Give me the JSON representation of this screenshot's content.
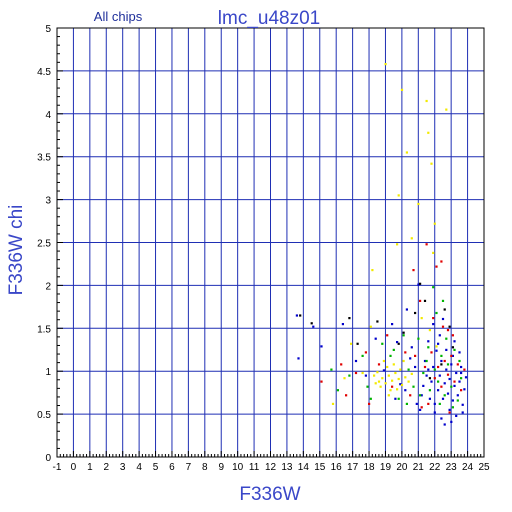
{
  "chart_data": {
    "type": "scatter",
    "subtitle": "All chips",
    "title": "lmc_u48z01",
    "xlabel": "F336W",
    "ylabel": "F336W chi",
    "xlim": [
      -1,
      25
    ],
    "ylim": [
      0,
      5
    ],
    "x_ticks": [
      "-1",
      "0",
      "1",
      "2",
      "3",
      "4",
      "5",
      "6",
      "7",
      "8",
      "9",
      "10",
      "11",
      "12",
      "13",
      "14",
      "15",
      "16",
      "17",
      "18",
      "19",
      "20",
      "21",
      "22",
      "23",
      "24",
      "25"
    ],
    "y_ticks": [
      "0",
      "0.5",
      "1",
      "1.5",
      "2",
      "2.5",
      "3",
      "3.5",
      "4",
      "4.5",
      "5"
    ],
    "grid": true,
    "colors": {
      "axes": "#000000",
      "grid": "#1f2fb4",
      "label": "#3a47c8",
      "title_small": "#1f2f9a"
    },
    "series": [
      {
        "color": "#0000cc",
        "points": [
          [
            13.6,
            1.65
          ],
          [
            13.7,
            1.15
          ],
          [
            14.6,
            1.52
          ],
          [
            15.1,
            1.29
          ],
          [
            16.4,
            1.55
          ],
          [
            17.2,
            1.12
          ],
          [
            17.8,
            0.95
          ],
          [
            18.4,
            1.38
          ],
          [
            18.9,
            1.01
          ],
          [
            19.4,
            1.55
          ],
          [
            19.7,
            1.34
          ],
          [
            19.9,
            0.85
          ],
          [
            20.3,
            1.72
          ],
          [
            20.6,
            1.28
          ],
          [
            20.8,
            1.05
          ],
          [
            21.0,
            2.01
          ],
          [
            21.2,
            0.72
          ],
          [
            21.4,
            1.12
          ],
          [
            21.5,
            0.95
          ],
          [
            21.6,
            1.35
          ],
          [
            21.8,
            0.88
          ],
          [
            21.9,
            1.05
          ],
          [
            22.0,
            0.62
          ],
          [
            22.1,
            1.24
          ],
          [
            22.2,
            0.78
          ],
          [
            22.3,
            0.95
          ],
          [
            22.4,
            1.12
          ],
          [
            22.5,
            0.68
          ],
          [
            22.6,
            0.86
          ],
          [
            22.7,
            1.02
          ],
          [
            22.8,
            0.74
          ],
          [
            22.9,
            0.91
          ],
          [
            23.0,
            1.08
          ],
          [
            23.1,
            0.66
          ],
          [
            23.2,
            0.83
          ],
          [
            23.3,
            0.98
          ],
          [
            23.4,
            0.72
          ],
          [
            23.5,
            0.88
          ],
          [
            23.6,
            1.05
          ],
          [
            23.7,
            0.61
          ],
          [
            23.8,
            0.79
          ],
          [
            23.9,
            0.93
          ],
          [
            22.2,
            1.32
          ],
          [
            22.7,
            1.25
          ],
          [
            23.1,
            1.18
          ],
          [
            23.5,
            1.22
          ],
          [
            21.7,
            0.68
          ],
          [
            22.0,
            0.52
          ],
          [
            22.4,
            0.45
          ],
          [
            22.9,
            0.55
          ],
          [
            23.3,
            0.48
          ],
          [
            23.7,
            0.52
          ],
          [
            21.3,
            0.83
          ],
          [
            20.9,
            0.62
          ],
          [
            21.1,
            0.55
          ],
          [
            22.6,
            0.38
          ],
          [
            23.0,
            0.41
          ],
          [
            22.3,
            1.42
          ],
          [
            21.9,
            1.55
          ],
          [
            22.5,
            1.61
          ],
          [
            23.2,
            1.35
          ],
          [
            23.6,
            0.98
          ],
          [
            21.6,
            1.02
          ],
          [
            20.5,
            1.15
          ],
          [
            20.2,
            0.78
          ],
          [
            19.6,
            0.68
          ]
        ]
      },
      {
        "color": "#f2ea00",
        "points": [
          [
            19.0,
            4.58
          ],
          [
            20.0,
            4.28
          ],
          [
            21.5,
            4.15
          ],
          [
            22.7,
            4.05
          ],
          [
            21.6,
            3.78
          ],
          [
            21.8,
            3.42
          ],
          [
            20.3,
            3.55
          ],
          [
            19.8,
            3.05
          ],
          [
            21.0,
            2.95
          ],
          [
            22.0,
            2.72
          ],
          [
            20.6,
            2.55
          ],
          [
            19.7,
            2.48
          ],
          [
            21.9,
            2.38
          ],
          [
            18.2,
            2.18
          ],
          [
            18.1,
            1.52
          ],
          [
            16.9,
            1.32
          ],
          [
            17.6,
            0.98
          ],
          [
            18.3,
            0.95
          ],
          [
            18.6,
            0.88
          ],
          [
            18.8,
            0.92
          ],
          [
            19.0,
            0.86
          ],
          [
            19.2,
            0.95
          ],
          [
            19.4,
            0.89
          ],
          [
            19.6,
            0.98
          ],
          [
            19.8,
            0.91
          ],
          [
            20.0,
            0.84
          ],
          [
            20.2,
            0.93
          ],
          [
            19.1,
            1.05
          ],
          [
            19.3,
            0.78
          ],
          [
            18.9,
            1.12
          ],
          [
            19.5,
            1.08
          ],
          [
            18.7,
            0.82
          ],
          [
            19.9,
            1.02
          ],
          [
            20.4,
            0.88
          ],
          [
            20.6,
            0.97
          ],
          [
            18.5,
            0.99
          ],
          [
            19.2,
            0.72
          ],
          [
            19.7,
            0.79
          ],
          [
            20.1,
            1.12
          ],
          [
            18.4,
            0.86
          ],
          [
            21.2,
            1.62
          ],
          [
            21.7,
            1.48
          ],
          [
            22.1,
            1.29
          ],
          [
            16.5,
            0.92
          ],
          [
            15.8,
            0.62
          ]
        ]
      },
      {
        "color": "#00b400",
        "points": [
          [
            15.7,
            1.02
          ],
          [
            16.1,
            0.78
          ],
          [
            16.8,
            0.95
          ],
          [
            17.6,
            1.18
          ],
          [
            18.1,
            0.68
          ],
          [
            18.8,
            1.32
          ],
          [
            19.3,
            1.18
          ],
          [
            19.8,
            0.68
          ],
          [
            20.1,
            1.42
          ],
          [
            20.4,
            1.02
          ],
          [
            20.7,
            0.82
          ],
          [
            21.0,
            1.38
          ],
          [
            21.3,
            0.98
          ],
          [
            21.5,
            1.12
          ],
          [
            21.7,
            0.78
          ],
          [
            22.0,
            1.02
          ],
          [
            22.2,
            0.88
          ],
          [
            22.4,
            1.18
          ],
          [
            22.6,
            0.72
          ],
          [
            22.8,
            1.08
          ],
          [
            23.0,
            0.82
          ],
          [
            23.2,
            1.25
          ],
          [
            23.4,
            0.66
          ],
          [
            23.6,
            0.92
          ],
          [
            22.1,
            1.68
          ],
          [
            22.5,
            1.82
          ],
          [
            21.9,
            1.98
          ],
          [
            22.3,
            0.62
          ],
          [
            21.1,
            0.72
          ],
          [
            20.3,
            0.62
          ],
          [
            23.1,
            0.58
          ],
          [
            23.5,
            1.12
          ],
          [
            22.7,
            1.38
          ],
          [
            21.6,
            1.28
          ],
          [
            19.5,
            1.25
          ],
          [
            17.9,
            0.82
          ]
        ]
      },
      {
        "color": "#e00000",
        "points": [
          [
            15.1,
            0.88
          ],
          [
            16.3,
            1.08
          ],
          [
            16.6,
            0.72
          ],
          [
            17.2,
            0.98
          ],
          [
            17.8,
            1.22
          ],
          [
            18.0,
            0.62
          ],
          [
            18.6,
            1.08
          ],
          [
            19.1,
            1.42
          ],
          [
            19.4,
            0.82
          ],
          [
            20.2,
            1.22
          ],
          [
            20.5,
            0.72
          ],
          [
            20.8,
            1.18
          ],
          [
            21.1,
            1.82
          ],
          [
            21.4,
            1.05
          ],
          [
            21.6,
            0.62
          ],
          [
            21.8,
            1.22
          ],
          [
            22.0,
            0.92
          ],
          [
            22.2,
            1.05
          ],
          [
            22.4,
            0.82
          ],
          [
            22.6,
            1.12
          ],
          [
            22.8,
            0.96
          ],
          [
            23.0,
            1.18
          ],
          [
            23.2,
            0.88
          ],
          [
            23.4,
            1.08
          ],
          [
            23.6,
            0.78
          ],
          [
            23.8,
            1.02
          ],
          [
            22.1,
            2.22
          ],
          [
            21.5,
            2.48
          ],
          [
            22.4,
            2.28
          ],
          [
            20.7,
            2.18
          ],
          [
            22.9,
            0.52
          ],
          [
            21.2,
            0.58
          ],
          [
            22.5,
            1.52
          ],
          [
            23.1,
            1.42
          ],
          [
            21.9,
            1.62
          ],
          [
            22.8,
            1.48
          ]
        ]
      },
      {
        "color": "#000000",
        "points": [
          [
            13.8,
            1.65
          ],
          [
            14.5,
            1.56
          ],
          [
            16.8,
            1.62
          ],
          [
            17.3,
            1.32
          ],
          [
            18.5,
            1.58
          ],
          [
            19.8,
            1.32
          ],
          [
            20.1,
            1.45
          ],
          [
            20.8,
            1.68
          ],
          [
            21.1,
            2.02
          ],
          [
            21.4,
            1.82
          ],
          [
            22.6,
            1.72
          ],
          [
            22.9,
            1.52
          ],
          [
            23.1,
            1.28
          ],
          [
            22.4,
            1.08
          ],
          [
            21.7,
            0.92
          ]
        ]
      }
    ]
  }
}
